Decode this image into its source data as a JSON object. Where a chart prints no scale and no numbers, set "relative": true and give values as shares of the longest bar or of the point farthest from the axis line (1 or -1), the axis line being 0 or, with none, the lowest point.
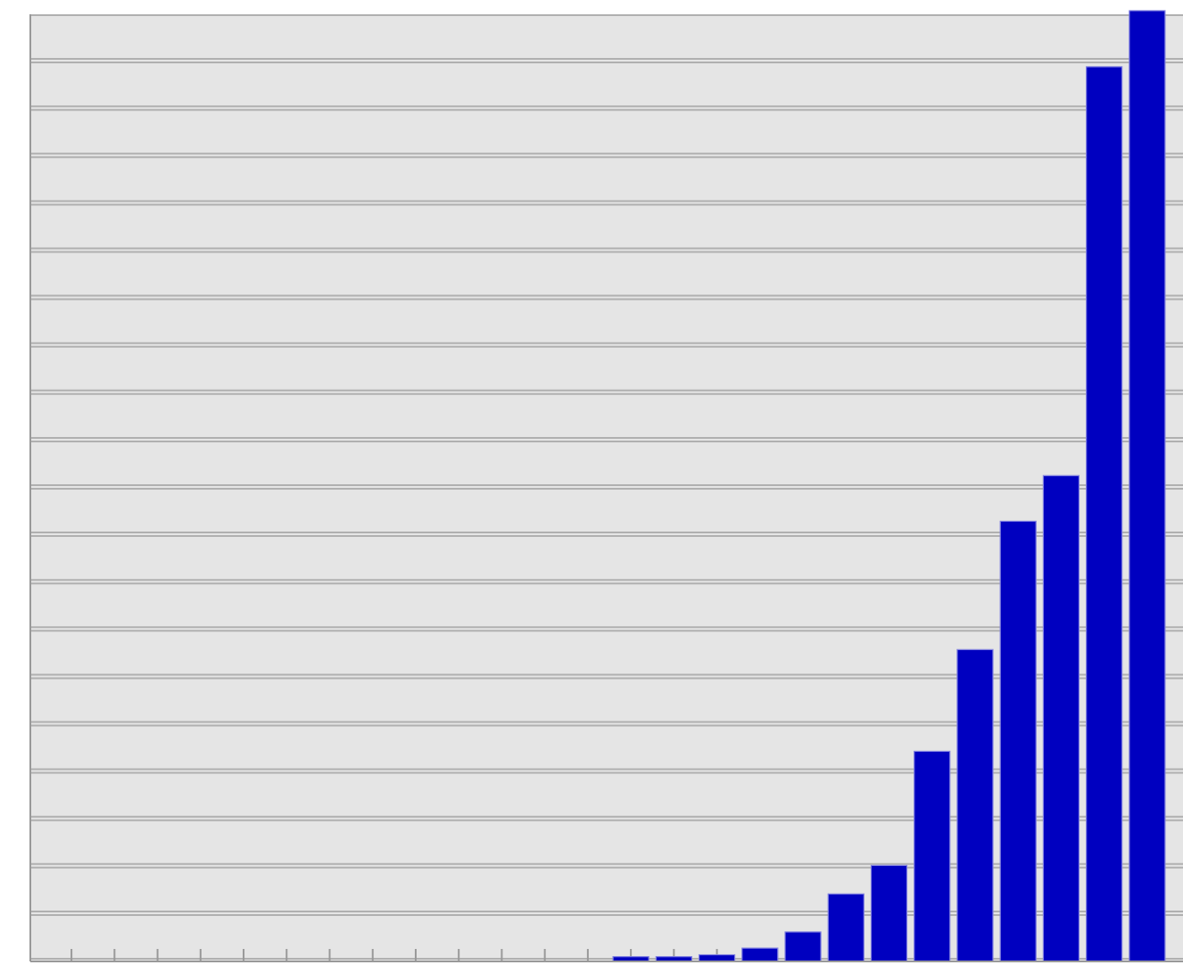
{
  "chart_data": {
    "type": "bar",
    "relative": true,
    "categories": [
      null,
      null,
      null,
      null,
      null,
      null,
      null,
      null,
      null,
      null,
      null,
      null,
      null
    ],
    "values": [
      0.005,
      0.005,
      0.007,
      0.014,
      0.031,
      0.071,
      0.101,
      0.221,
      0.328,
      0.463,
      0.511,
      0.941,
      1
    ],
    "color": "#0000c0",
    "grid": true
  }
}
